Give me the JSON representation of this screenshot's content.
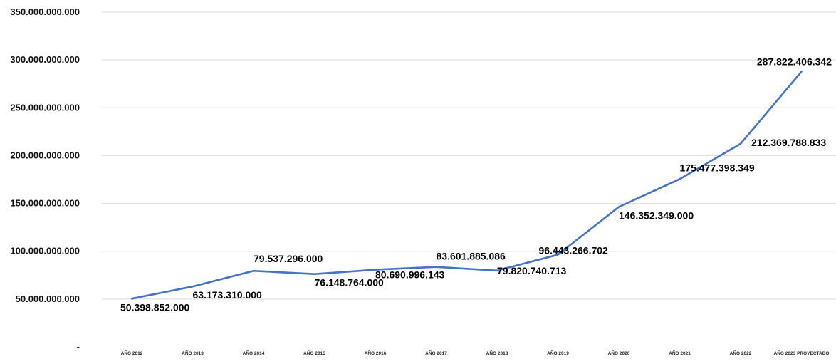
{
  "chart_data": {
    "type": "line",
    "title": "",
    "xlabel": "",
    "ylabel": "",
    "grid": true,
    "legend": "none",
    "line_color": "#4472c4",
    "categories": [
      "AÑO 2012",
      "AÑO 2013",
      "AÑO 2014",
      "AÑO 2015",
      "AÑO 2016",
      "AÑO 2017",
      "AÑO 2018",
      "AÑO 2019",
      "AÑO 2020",
      "AÑO 2021",
      "AÑO 2022",
      "AÑO 2023 PROYECTADO"
    ],
    "values": [
      50398852000,
      63173310000,
      79537296000,
      76148764000,
      80690996143,
      83601885086,
      79820740713,
      96443266702,
      146352349000,
      175477398349,
      212369788833,
      287822406342
    ],
    "data_labels": [
      "50.398.852.000",
      "63.173.310.000",
      "79.537.296.000",
      "76.148.764.000",
      "80.690.996.143",
      "83.601.885.086",
      "79.820.740.713",
      "96.443.266.702",
      "146.352.349.000",
      "175.477.398.349",
      "212.369.788.833",
      "287.822.406.342"
    ],
    "ylim": [
      0,
      350000000000
    ],
    "y_ticks": [
      0,
      50000000000,
      100000000000,
      150000000000,
      200000000000,
      250000000000,
      300000000000,
      350000000000
    ],
    "y_tick_labels": [
      "-",
      "50.000.000.000",
      "100.000.000.000",
      "150.000.000.000",
      "200.000.000.000",
      "250.000.000.000",
      "300.000.000.000",
      "350.000.000.000"
    ]
  }
}
